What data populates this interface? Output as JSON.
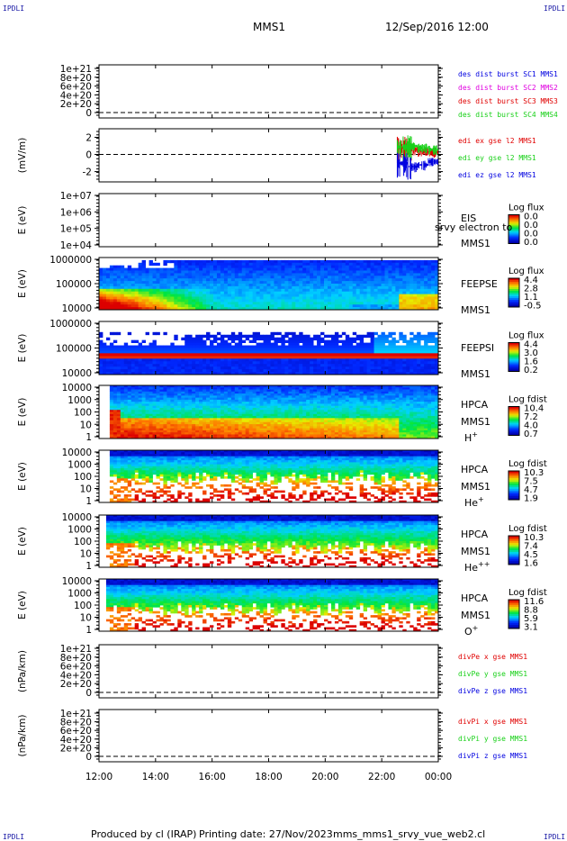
{
  "corners": {
    "tl": "IPDLI",
    "tr": "IPDLI",
    "bl": "IPDLI",
    "br": "IPDLI"
  },
  "header": {
    "spacecraft": "MMS1",
    "date": "12/Sep/2016 12:00"
  },
  "footer": {
    "produced": "Produced by cl (IRAP)",
    "printing": "Printing date: 27/Nov/2023",
    "script": "mms_mms1_srvy_vue_web2.cl"
  },
  "colors": {
    "red": "#e00000",
    "magenta": "#e000e0",
    "green": "#18d018",
    "blue": "#0000e0",
    "grid_dash": "#000000"
  },
  "chart_data": [
    {
      "id": "dist",
      "type": "line",
      "ylabel": "",
      "yticks": [
        "1e+21",
        "8e+20",
        "6e+20",
        "4e+20",
        "2e+20",
        "0"
      ],
      "series": [
        {
          "name": "des dist burst SC1 MMS1",
          "color": "#0000e0",
          "values": []
        },
        {
          "name": "des dist burst SC2 MMS2",
          "color": "#e000e0",
          "values": []
        },
        {
          "name": "des dist burst SC3 MMS3",
          "color": "#e00000",
          "values": []
        },
        {
          "name": "des dist burst SC4 MMS4",
          "color": "#18d018",
          "values": []
        }
      ]
    },
    {
      "id": "edi",
      "type": "line",
      "ylabel": "(mV/m)",
      "yticks": [
        "2",
        "0",
        "-2"
      ],
      "ylim": [
        -3.2,
        3.0
      ],
      "series": [
        {
          "name": "edi ex gse l2 MMS1",
          "color": "#e00000",
          "x": [
            22.55,
            23.0,
            23.5,
            24.0
          ],
          "values": [
            0.8,
            0.6,
            0.4,
            0.3
          ]
        },
        {
          "name": "edi ey gse l2 MMS1",
          "color": "#18d018",
          "x": [
            22.55,
            23.0,
            23.5,
            24.0
          ],
          "values": [
            0.9,
            1.0,
            0.8,
            0.6
          ]
        },
        {
          "name": "edi ez gse l2 MMS1",
          "color": "#0000e0",
          "x": [
            22.55,
            23.0,
            23.5,
            24.0
          ],
          "values": [
            -1.0,
            -1.4,
            -1.2,
            -0.8
          ]
        }
      ]
    },
    {
      "id": "eis",
      "type": "heatmap",
      "ylabel": "E (eV)",
      "yticks": [
        "1e+07",
        "1e+06",
        "1e+05",
        "1e+04"
      ],
      "side": [
        "EIS",
        "MMS1"
      ],
      "overlay": "srvy electron to",
      "cbar_title": "Log flux",
      "cbar_ticks": [
        "0.0",
        "0.0",
        "0.0",
        "0.0"
      ]
    },
    {
      "id": "feepse",
      "type": "heatmap",
      "ylabel": "E (eV)",
      "yticks": [
        "1000000",
        "100000",
        "10000"
      ],
      "side": [
        "FEEPSE",
        "MMS1"
      ],
      "cbar_title": "Log flux",
      "cbar_ticks": [
        "4.4",
        "2.8",
        "1.1",
        "-0.5"
      ]
    },
    {
      "id": "feepsi",
      "type": "heatmap",
      "ylabel": "E (eV)",
      "yticks": [
        "1000000",
        "100000",
        "10000"
      ],
      "side": [
        "FEEPSI",
        "MMS1"
      ],
      "cbar_title": "Log flux",
      "cbar_ticks": [
        "4.4",
        "3.0",
        "1.6",
        "0.2"
      ]
    },
    {
      "id": "hpca_h",
      "type": "heatmap",
      "ylabel": "E (eV)",
      "yticks": [
        "10000",
        "1000",
        "100",
        "10",
        "1"
      ],
      "side": [
        "HPCA",
        "MMS1",
        "H+"
      ],
      "cbar_title": "Log fdist",
      "cbar_ticks": [
        "10.4",
        "7.2",
        "4.0",
        "0.7"
      ]
    },
    {
      "id": "hpca_he",
      "type": "heatmap",
      "ylabel": "E (eV)",
      "yticks": [
        "10000",
        "1000",
        "100",
        "10",
        "1"
      ],
      "side": [
        "HPCA",
        "MMS1",
        "He+"
      ],
      "cbar_title": "Log fdist",
      "cbar_ticks": [
        "10.3",
        "7.5",
        "4.7",
        "1.9"
      ]
    },
    {
      "id": "hpca_he2",
      "type": "heatmap",
      "ylabel": "E (eV)",
      "yticks": [
        "10000",
        "1000",
        "100",
        "10",
        "1"
      ],
      "side": [
        "HPCA",
        "MMS1",
        "He++"
      ],
      "cbar_title": "Log fdist",
      "cbar_ticks": [
        "10.3",
        "7.4",
        "4.5",
        "1.6"
      ]
    },
    {
      "id": "hpca_o",
      "type": "heatmap",
      "ylabel": "E (eV)",
      "yticks": [
        "10000",
        "1000",
        "100",
        "10",
        "1"
      ],
      "side": [
        "HPCA",
        "MMS1",
        "O+"
      ],
      "cbar_title": "Log fdist",
      "cbar_ticks": [
        "11.6",
        "8.8",
        "5.9",
        "3.1"
      ]
    },
    {
      "id": "divpe",
      "type": "line",
      "ylabel": "(nPa/km)",
      "yticks": [
        "1e+21",
        "8e+20",
        "6e+20",
        "4e+20",
        "2e+20",
        "0"
      ],
      "series": [
        {
          "name": "divPe x gse MMS1",
          "color": "#e00000",
          "values": []
        },
        {
          "name": "divPe y gse MMS1",
          "color": "#18d018",
          "values": []
        },
        {
          "name": "divPe z gse MMS1",
          "color": "#0000e0",
          "values": []
        }
      ]
    },
    {
      "id": "divpi",
      "type": "line",
      "ylabel": "(nPa/km)",
      "yticks": [
        "1e+21",
        "8e+20",
        "6e+20",
        "4e+20",
        "2e+20",
        "0"
      ],
      "series": [
        {
          "name": "divPi x gse MMS1",
          "color": "#e00000",
          "values": []
        },
        {
          "name": "divPi y gse MMS1",
          "color": "#18d018",
          "values": []
        },
        {
          "name": "divPi z gse MMS1",
          "color": "#0000e0",
          "values": []
        }
      ]
    }
  ],
  "xaxis": {
    "ticks": [
      "12:00",
      "14:00",
      "16:00",
      "18:00",
      "20:00",
      "22:00",
      "00:00"
    ],
    "range_hours": [
      12,
      24
    ]
  }
}
